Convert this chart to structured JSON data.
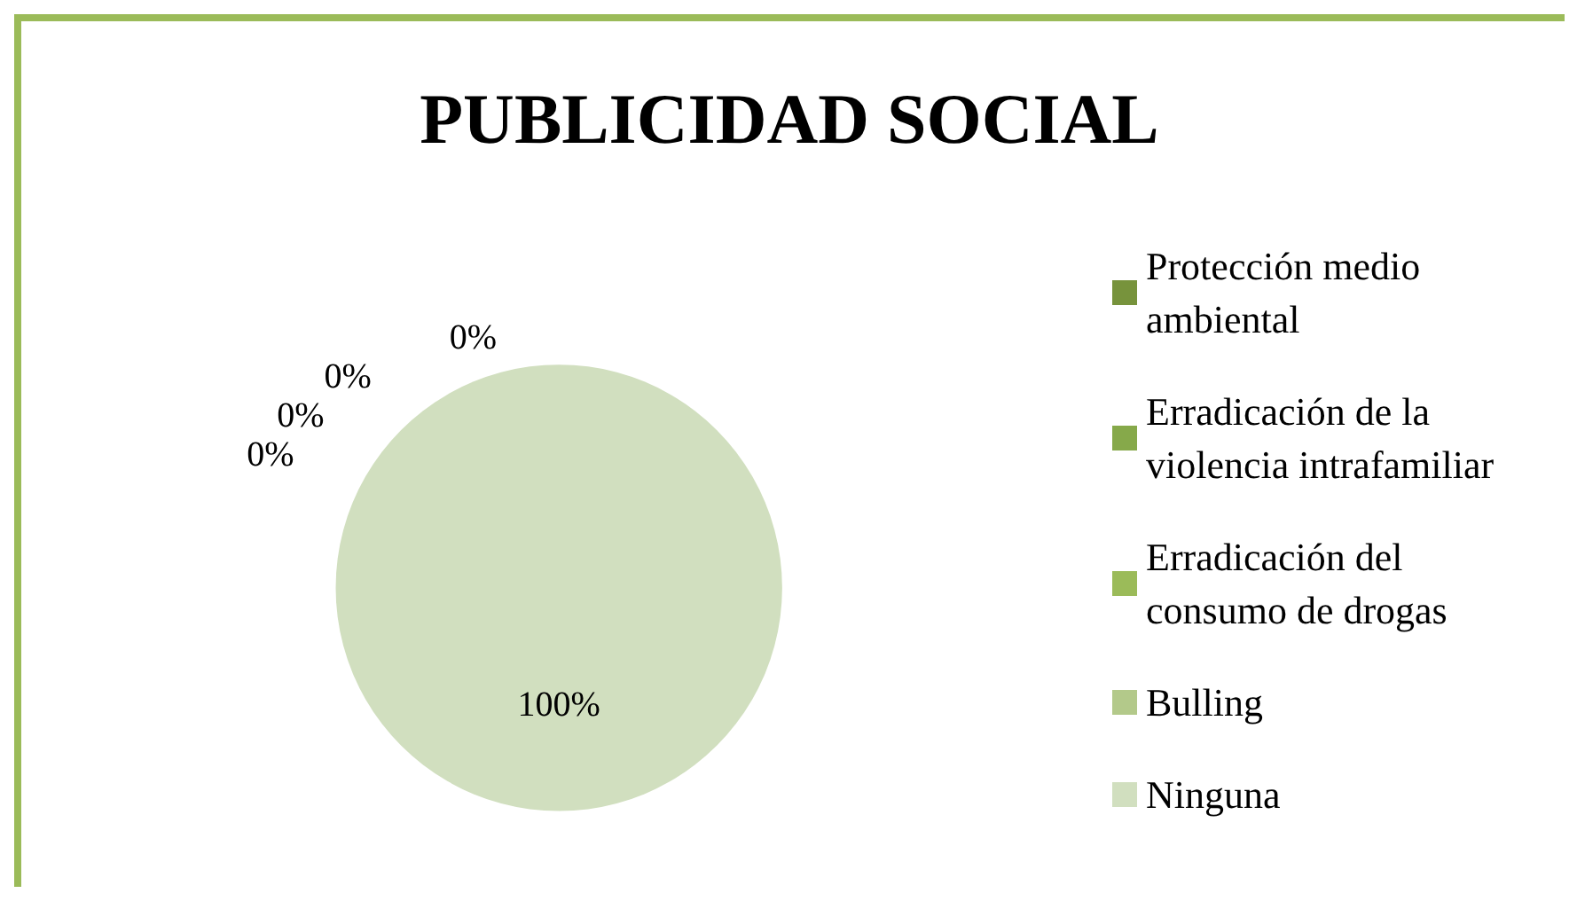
{
  "chart_data": {
    "type": "pie",
    "title": "PUBLICIDAD SOCIAL",
    "categories": [
      "Protección medio ambiental",
      "Erradicación de la violencia intrafamiliar",
      "Erradicación del consumo de drogas",
      "Bulling",
      "Ninguna"
    ],
    "values": [
      0,
      0,
      0,
      0,
      100
    ],
    "colors": [
      "#77933c",
      "#86a94a",
      "#9bbb59",
      "#b3c98a",
      "#d1dfbf"
    ],
    "value_labels": [
      "0%",
      "0%",
      "0%",
      "0%",
      "100%"
    ],
    "legend": "right"
  }
}
